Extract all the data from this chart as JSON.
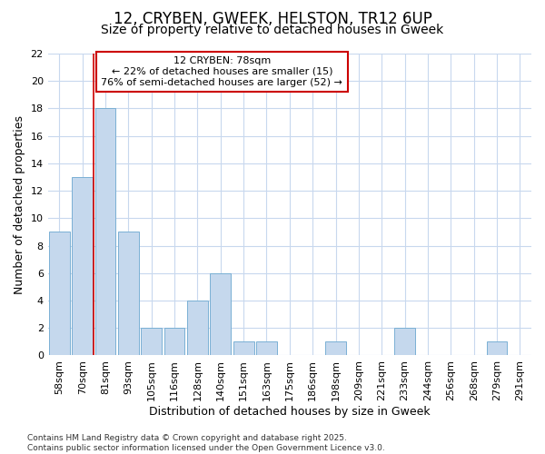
{
  "title1": "12, CRYBEN, GWEEK, HELSTON, TR12 6UP",
  "title2": "Size of property relative to detached houses in Gweek",
  "xlabel": "Distribution of detached houses by size in Gweek",
  "ylabel": "Number of detached properties",
  "categories": [
    "58sqm",
    "70sqm",
    "81sqm",
    "93sqm",
    "105sqm",
    "116sqm",
    "128sqm",
    "140sqm",
    "151sqm",
    "163sqm",
    "175sqm",
    "186sqm",
    "198sqm",
    "209sqm",
    "221sqm",
    "233sqm",
    "244sqm",
    "256sqm",
    "268sqm",
    "279sqm",
    "291sqm"
  ],
  "values": [
    9,
    13,
    18,
    9,
    2,
    2,
    4,
    6,
    1,
    1,
    0,
    0,
    1,
    0,
    0,
    2,
    0,
    0,
    0,
    1,
    0
  ],
  "bar_color": "#c5d8ed",
  "bar_edge_color": "#7ab0d4",
  "background_color": "#ffffff",
  "grid_color": "#c8d8ee",
  "red_line_x": 1.5,
  "ylim": [
    0,
    22
  ],
  "yticks": [
    0,
    2,
    4,
    6,
    8,
    10,
    12,
    14,
    16,
    18,
    20,
    22
  ],
  "annotation_line1": "12 CRYBEN: 78sqm",
  "annotation_line2": "← 22% of detached houses are smaller (15)",
  "annotation_line3": "76% of semi-detached houses are larger (52) →",
  "annotation_border_color": "#cc0000",
  "footer_text": "Contains HM Land Registry data © Crown copyright and database right 2025.\nContains public sector information licensed under the Open Government Licence v3.0.",
  "title1_fontsize": 12,
  "title2_fontsize": 10,
  "axis_label_fontsize": 9,
  "tick_fontsize": 8,
  "annotation_fontsize": 8,
  "footer_fontsize": 6.5
}
